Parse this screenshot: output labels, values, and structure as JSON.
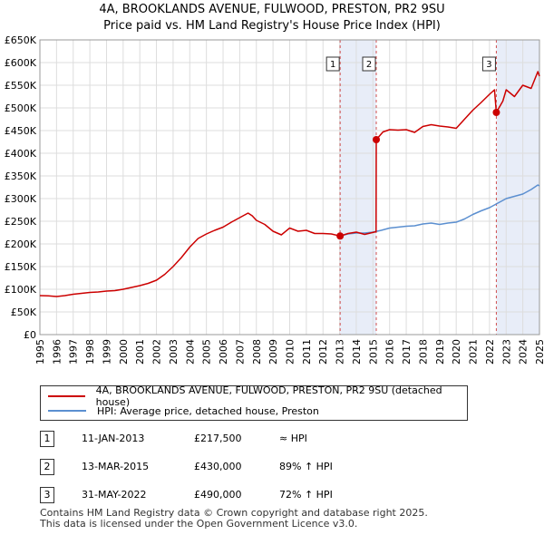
{
  "title": {
    "line1": "4A, BROOKLANDS AVENUE, FULWOOD, PRESTON, PR2 9SU",
    "line2": "Price paid vs. HM Land Registry's House Price Index (HPI)"
  },
  "colors": {
    "property": "#cc0000",
    "hpi": "#5b8fd0",
    "shade": "#e8edf8",
    "vline": "#d05050"
  },
  "chart_data": {
    "type": "line",
    "xlim": [
      1995,
      2025
    ],
    "ylim": [
      0,
      650000
    ],
    "x_ticks": [
      1995,
      1996,
      1997,
      1998,
      1999,
      2000,
      2001,
      2002,
      2003,
      2004,
      2005,
      2006,
      2007,
      2008,
      2009,
      2010,
      2011,
      2012,
      2013,
      2014,
      2015,
      2016,
      2017,
      2018,
      2019,
      2020,
      2021,
      2022,
      2023,
      2024,
      2025
    ],
    "y_ticks": [
      {
        "value": 0,
        "label": "£0"
      },
      {
        "value": 50000,
        "label": "£50K"
      },
      {
        "value": 100000,
        "label": "£100K"
      },
      {
        "value": 150000,
        "label": "£150K"
      },
      {
        "value": 200000,
        "label": "£200K"
      },
      {
        "value": 250000,
        "label": "£250K"
      },
      {
        "value": 300000,
        "label": "£300K"
      },
      {
        "value": 350000,
        "label": "£350K"
      },
      {
        "value": 400000,
        "label": "£400K"
      },
      {
        "value": 450000,
        "label": "£450K"
      },
      {
        "value": 500000,
        "label": "£500K"
      },
      {
        "value": 550000,
        "label": "£550K"
      },
      {
        "value": 600000,
        "label": "£600K"
      },
      {
        "value": 650000,
        "label": "£650K"
      }
    ],
    "shaded_ranges": [
      [
        2013.03,
        2015.2
      ],
      [
        2022.41,
        2025
      ]
    ],
    "series": [
      {
        "name": "4A, BROOKLANDS AVENUE, FULWOOD, PRESTON, PR2 9SU (detached house)",
        "color": "#cc0000",
        "points": [
          [
            1995.0,
            86000
          ],
          [
            1995.5,
            85500
          ],
          [
            1996.0,
            84000
          ],
          [
            1996.5,
            86000
          ],
          [
            1997.0,
            89000
          ],
          [
            1997.5,
            91000
          ],
          [
            1998.0,
            93000
          ],
          [
            1998.5,
            94000
          ],
          [
            1999.0,
            96000
          ],
          [
            1999.5,
            97000
          ],
          [
            2000.0,
            100000
          ],
          [
            2000.5,
            104000
          ],
          [
            2001.0,
            108000
          ],
          [
            2001.5,
            113000
          ],
          [
            2002.0,
            120000
          ],
          [
            2002.5,
            133000
          ],
          [
            2003.0,
            150000
          ],
          [
            2003.5,
            170000
          ],
          [
            2004.0,
            193000
          ],
          [
            2004.5,
            212000
          ],
          [
            2005.0,
            222000
          ],
          [
            2005.5,
            230000
          ],
          [
            2006.0,
            237000
          ],
          [
            2006.5,
            248000
          ],
          [
            2007.0,
            258000
          ],
          [
            2007.5,
            268000
          ],
          [
            2007.75,
            262000
          ],
          [
            2008.0,
            252000
          ],
          [
            2008.5,
            243000
          ],
          [
            2009.0,
            228000
          ],
          [
            2009.5,
            220000
          ],
          [
            2010.0,
            235000
          ],
          [
            2010.5,
            228000
          ],
          [
            2011.0,
            230000
          ],
          [
            2011.5,
            223000
          ],
          [
            2012.0,
            223000
          ],
          [
            2012.5,
            222000
          ],
          [
            2013.03,
            217500
          ],
          [
            2013.5,
            223000
          ],
          [
            2014.0,
            226000
          ],
          [
            2014.5,
            221000
          ],
          [
            2015.19,
            227000
          ],
          [
            2015.2,
            430000
          ],
          [
            2015.6,
            447000
          ],
          [
            2016.0,
            452000
          ],
          [
            2016.5,
            451000
          ],
          [
            2017.0,
            452000
          ],
          [
            2017.5,
            446000
          ],
          [
            2018.0,
            459000
          ],
          [
            2018.5,
            463000
          ],
          [
            2019.0,
            460000
          ],
          [
            2019.5,
            458000
          ],
          [
            2020.0,
            455000
          ],
          [
            2020.5,
            475000
          ],
          [
            2021.0,
            495000
          ],
          [
            2021.5,
            512000
          ],
          [
            2022.0,
            530000
          ],
          [
            2022.3,
            540000
          ],
          [
            2022.41,
            490000
          ],
          [
            2022.8,
            515000
          ],
          [
            2023.0,
            540000
          ],
          [
            2023.5,
            525000
          ],
          [
            2024.0,
            550000
          ],
          [
            2024.5,
            543000
          ],
          [
            2024.9,
            580000
          ],
          [
            2025.0,
            570000
          ]
        ]
      },
      {
        "name": "HPI: Average price, detached house, Preston",
        "color": "#5b8fd0",
        "points": [
          [
            2013.03,
            217500
          ],
          [
            2013.5,
            222000
          ],
          [
            2014.0,
            224000
          ],
          [
            2014.5,
            224000
          ],
          [
            2015.0,
            226000
          ],
          [
            2015.5,
            230000
          ],
          [
            2016.0,
            235000
          ],
          [
            2016.5,
            237000
          ],
          [
            2017.0,
            239000
          ],
          [
            2017.5,
            240000
          ],
          [
            2018.0,
            244000
          ],
          [
            2018.5,
            246000
          ],
          [
            2019.0,
            243000
          ],
          [
            2019.5,
            246000
          ],
          [
            2020.0,
            248000
          ],
          [
            2020.5,
            255000
          ],
          [
            2021.0,
            265000
          ],
          [
            2021.5,
            273000
          ],
          [
            2022.0,
            280000
          ],
          [
            2022.5,
            290000
          ],
          [
            2023.0,
            300000
          ],
          [
            2023.5,
            305000
          ],
          [
            2024.0,
            310000
          ],
          [
            2024.5,
            320000
          ],
          [
            2024.9,
            330000
          ],
          [
            2025.0,
            328000
          ]
        ]
      }
    ],
    "sales": [
      {
        "id": "1",
        "x": 2013.03,
        "y": 217500
      },
      {
        "id": "2",
        "x": 2015.2,
        "y": 430000
      },
      {
        "id": "3",
        "x": 2022.41,
        "y": 490000
      }
    ]
  },
  "legend": {
    "property": "4A, BROOKLANDS AVENUE, FULWOOD, PRESTON, PR2 9SU (detached house)",
    "hpi": "HPI: Average price, detached house, Preston"
  },
  "sales_table": [
    {
      "num": "1",
      "date": "11-JAN-2013",
      "price": "£217,500",
      "relation": "≈ HPI"
    },
    {
      "num": "2",
      "date": "13-MAR-2015",
      "price": "£430,000",
      "relation": "89% ↑ HPI"
    },
    {
      "num": "3",
      "date": "31-MAY-2022",
      "price": "£490,000",
      "relation": "72% ↑ HPI"
    }
  ],
  "footer": {
    "line1": "Contains HM Land Registry data © Crown copyright and database right 2025.",
    "line2": "This data is licensed under the Open Government Licence v3.0."
  }
}
